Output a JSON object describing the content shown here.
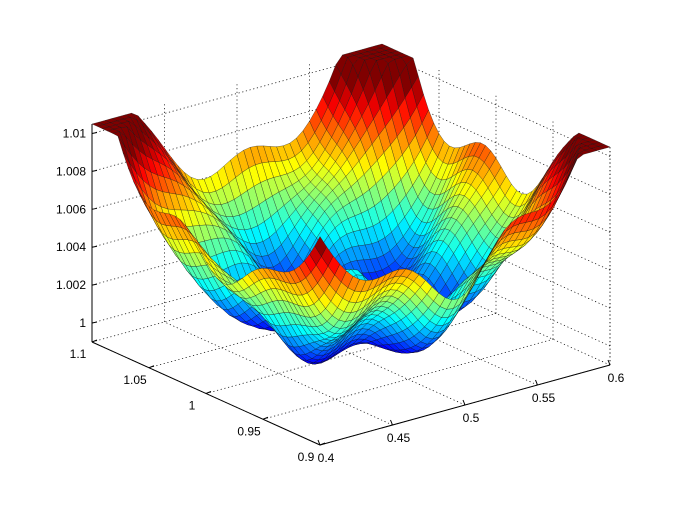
{
  "chart_data": {
    "type": "surface",
    "title": "",
    "xlabel": "",
    "ylabel": "",
    "zlabel": "",
    "grid": true,
    "colormap": "jet",
    "colors": {
      "low": "#0000ff",
      "mid": "#00ffff",
      "high": "#ff0000",
      "mesh": "#111111",
      "axes": "#000000"
    },
    "xlim": [
      0.4,
      0.6
    ],
    "ylim": [
      0.9,
      1.1
    ],
    "zlim": [
      0.999,
      1.0105
    ],
    "x_ticks": [
      "0.4",
      "0.45",
      "0.5",
      "0.55",
      "0.6"
    ],
    "y_ticks": [
      "0.9",
      "0.95",
      "1",
      "1.05",
      "1.1"
    ],
    "z_ticks": [
      "1",
      "1.002",
      "1.004",
      "1.006",
      "1.008",
      "1.01"
    ],
    "x_tick_values": [
      0.4,
      0.45,
      0.5,
      0.55,
      0.6
    ],
    "y_tick_values": [
      0.9,
      0.95,
      1.0,
      1.05,
      1.1
    ],
    "z_tick_values": [
      1.0,
      1.002,
      1.004,
      1.006,
      1.008,
      1.01
    ],
    "surface_features": [
      {
        "description_x": 0.5,
        "y": 1.0,
        "z": 1.0032
      },
      {
        "description_x": 0.4,
        "y": 1.1,
        "z": 1.0084
      },
      {
        "description_x": 0.6,
        "y": 1.1,
        "z": 1.0105
      },
      {
        "description_x": 0.6,
        "y": 0.9,
        "z": 1.0082
      },
      {
        "description_x": 0.4,
        "y": 0.9,
        "z": 1.002
      }
    ]
  }
}
